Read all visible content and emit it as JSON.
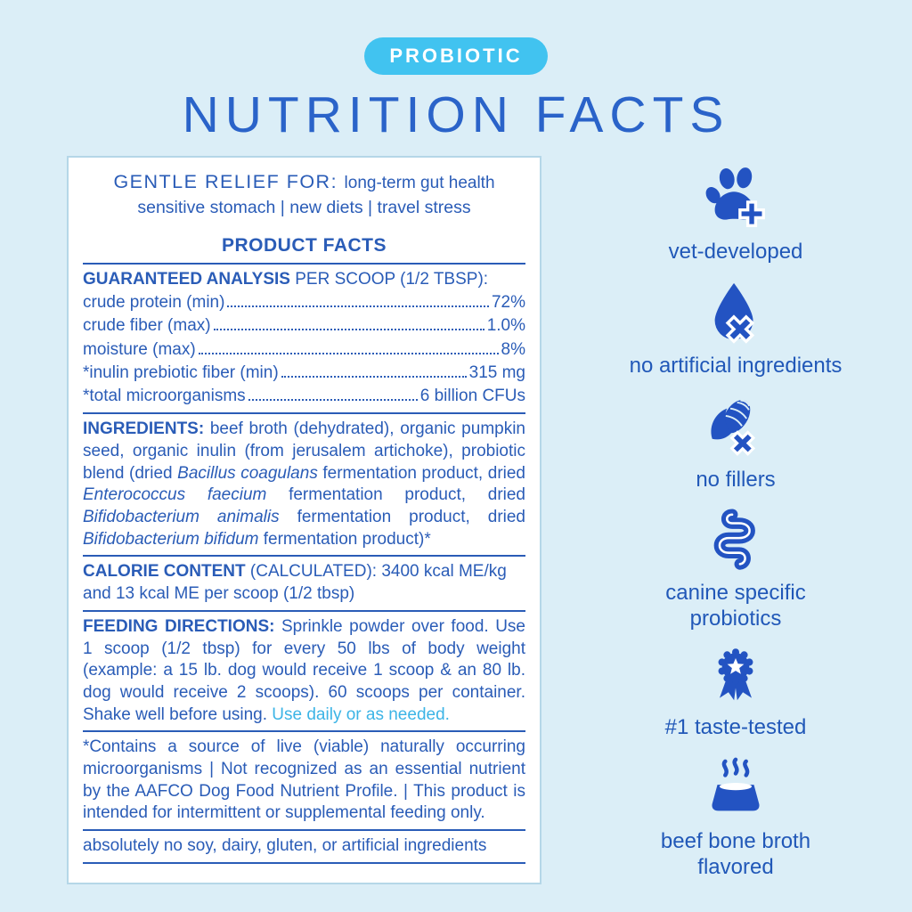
{
  "colors": {
    "background": "#dbeef7",
    "panel_background": "#ffffff",
    "panel_border": "#b5d7e8",
    "primary_blue": "#2a5cb7",
    "title_blue": "#2a63c9",
    "icon_blue": "#2353c2",
    "badge_cyan": "#41c3f0",
    "accent_cyan": "#3cb4e6"
  },
  "header": {
    "badge": "PROBIOTIC",
    "title": "NUTRITION FACTS"
  },
  "panel": {
    "gentle_relief": {
      "segments": [
        {
          "t": "GENTLE RELIEF FOR: ",
          "h": 1
        },
        {
          "t": "long-term gut health"
        }
      ],
      "line2": "sensitive stomach | new diets | travel stress"
    },
    "product_facts_heading": "PRODUCT FACTS",
    "guaranteed_analysis": {
      "heading_segments": [
        {
          "t": "GUARANTEED ANALYSIS ",
          "b": 1
        },
        {
          "t": "PER SCOOP (1/2 TBSP):"
        }
      ],
      "rows": [
        {
          "label": "crude protein (min)",
          "value": "72%"
        },
        {
          "label": "crude fiber (max)",
          "value": "1.0%"
        },
        {
          "label": "moisture (max)",
          "value": "8%"
        },
        {
          "label": "*inulin prebiotic fiber (min)",
          "value": "315 mg"
        },
        {
          "label": "*total microorganisms",
          "value": "6 billion CFUs"
        }
      ]
    },
    "ingredients": {
      "segments": [
        {
          "t": "INGREDIENTS: ",
          "b": 1
        },
        {
          "t": "beef broth (dehydrated), organic pumpkin seed, organic inulin (from jerusalem artichoke), probiotic blend (dried "
        },
        {
          "t": "Bacillus coagulans",
          "i": 1
        },
        {
          "t": " fermentation product, dried "
        },
        {
          "t": "Enterococcus faecium",
          "i": 1
        },
        {
          "t": " fermentation product, dried "
        },
        {
          "t": "Bifidobacterium animalis",
          "i": 1
        },
        {
          "t": " fermentation product, dried "
        },
        {
          "t": "Bifidobacterium bifidum",
          "i": 1
        },
        {
          "t": " fermentation product)*"
        }
      ]
    },
    "calorie_content": {
      "segments": [
        {
          "t": "CALORIE CONTENT ",
          "b": 1
        },
        {
          "t": "(CALCULATED): 3400 kcal ME/kg and 13 kcal ME per scoop (1/2 tbsp)"
        }
      ]
    },
    "feeding_directions": {
      "segments": [
        {
          "t": "FEEDING DIRECTIONS: ",
          "b": 1
        },
        {
          "t": "Sprinkle powder over food. Use 1 scoop (1/2 tbsp) for every 50 lbs of body weight (example: a 15 lb. dog would receive 1 scoop & an 80 lb. dog would receive 2 scoops). 60 scoops per container. Shake well before using. "
        },
        {
          "t": "Use daily or as needed.",
          "c": "cyan"
        }
      ]
    },
    "footnote": "*Contains a source of live (viable) naturally occurring microorganisms | Not recognized as an essential nutrient by the AAFCO Dog Food Nutrient Profile. | This product is intended for intermittent or supplemental feeding only.",
    "disclaimer": "absolutely no soy, dairy, gluten, or artificial ingredients"
  },
  "benefits": {
    "items": [
      {
        "icon": "paw-plus-icon",
        "label": "vet-developed"
      },
      {
        "icon": "droplet-x-icon",
        "label": "no artificial ingredients"
      },
      {
        "icon": "corn-x-icon",
        "label": "no fillers"
      },
      {
        "icon": "intestine-icon",
        "label": "canine specific probiotics"
      },
      {
        "icon": "award-ribbon-icon",
        "label": "#1 taste-tested"
      },
      {
        "icon": "bowl-steam-icon",
        "label": "beef bone broth flavored"
      }
    ]
  }
}
